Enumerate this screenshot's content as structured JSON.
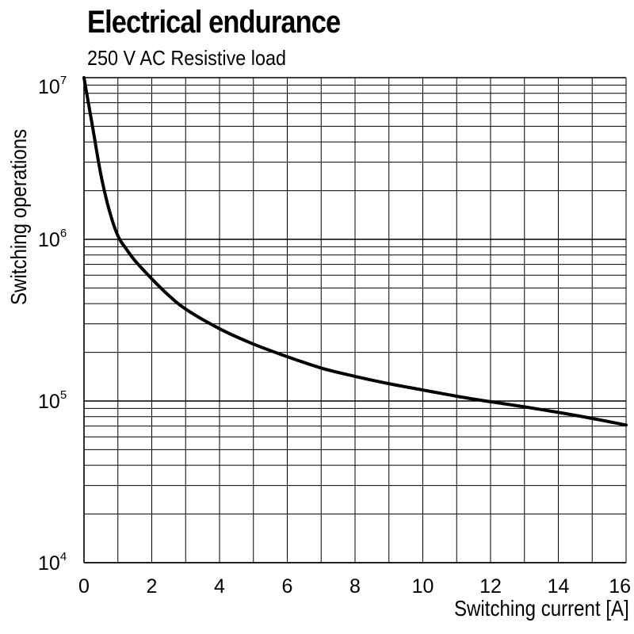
{
  "chart_data": {
    "type": "line",
    "title": "Electrical endurance",
    "subtitle": "250 V AC Resistive load",
    "xlabel": "Switching current [A]",
    "ylabel": "Switching operations",
    "xlim": [
      0,
      16
    ],
    "ylim": [
      10000,
      10000000
    ],
    "yscale": "log",
    "grid": true,
    "x_ticks": [
      "0",
      "2",
      "4",
      "6",
      "8",
      "10",
      "12",
      "14",
      "16"
    ],
    "y_ticks": [
      {
        "base": "10",
        "exp": "4",
        "value": 10000
      },
      {
        "base": "10",
        "exp": "5",
        "value": 100000
      },
      {
        "base": "10",
        "exp": "6",
        "value": 1000000
      },
      {
        "base": "10",
        "exp": "7",
        "value": 10000000
      }
    ],
    "series": [
      {
        "name": "250 V AC Resistive load",
        "x": [
          0.0,
          0.25,
          0.5,
          0.75,
          1.0,
          1.25,
          1.5,
          2.0,
          2.5,
          3.0,
          4.0,
          5.0,
          6.0,
          7.0,
          8.0,
          9.0,
          10.0,
          11.0,
          12.0,
          13.0,
          14.0,
          15.0,
          16.0
        ],
        "y": [
          10000000,
          5000000,
          2500000,
          1500000,
          1050000,
          870000,
          740000,
          570000,
          450000,
          370000,
          280000,
          225000,
          188000,
          160000,
          142000,
          128000,
          117000,
          107000,
          99000,
          92000,
          85000,
          78000,
          71000
        ]
      }
    ]
  }
}
